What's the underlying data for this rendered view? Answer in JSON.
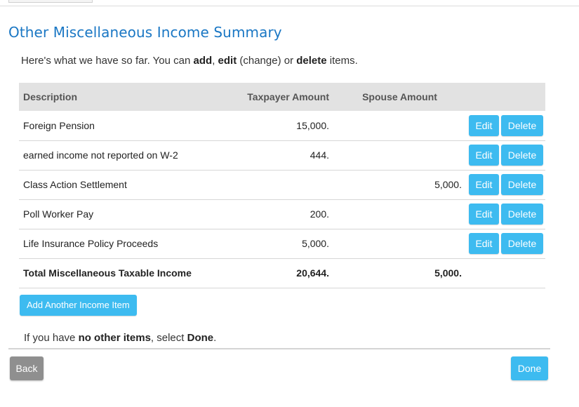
{
  "page": {
    "title": "Other Miscellaneous Income Summary",
    "intro": {
      "t1": "Here's what we have so far. You can ",
      "b1": "add",
      "t2": ", ",
      "b2": "edit",
      "t3": " (change) or ",
      "b3": "delete",
      "t4": " items."
    }
  },
  "table": {
    "headers": {
      "description": "Description",
      "taxpayer": "Taxpayer Amount",
      "spouse": "Spouse Amount"
    },
    "rows": [
      {
        "description": "Foreign Pension",
        "taxpayer": "15,000.",
        "spouse": "",
        "edit": "Edit",
        "delete": "Delete"
      },
      {
        "description": "earned income not reported on W-2",
        "taxpayer": "444.",
        "spouse": "",
        "edit": "Edit",
        "delete": "Delete"
      },
      {
        "description": "Class Action Settlement",
        "taxpayer": "",
        "spouse": "5,000.",
        "edit": "Edit",
        "delete": "Delete"
      },
      {
        "description": "Poll Worker Pay",
        "taxpayer": "200.",
        "spouse": "",
        "edit": "Edit",
        "delete": "Delete"
      },
      {
        "description": "Life Insurance Policy Proceeds",
        "taxpayer": "5,000.",
        "spouse": "",
        "edit": "Edit",
        "delete": "Delete"
      }
    ],
    "total": {
      "label": "Total Miscellaneous Taxable Income",
      "taxpayer": "20,644.",
      "spouse": "5,000."
    }
  },
  "actions": {
    "add_label": "Add Another Income Item",
    "back_label": "Back",
    "done_label": "Done"
  },
  "done_note": {
    "t1": "If you have ",
    "b1": "no other items",
    "t2": ", select ",
    "b2": "Done",
    "t3": "."
  },
  "colors": {
    "accent": "#3dbbf0",
    "title": "#1a77c4",
    "back_button": "#8f8f8f",
    "header_bg": "#e2e2e2"
  }
}
